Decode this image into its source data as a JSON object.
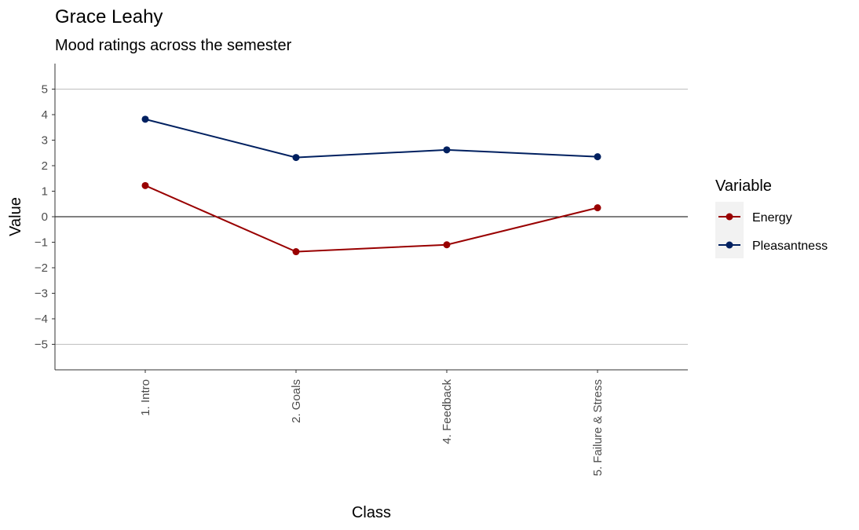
{
  "chart_data": {
    "type": "line",
    "title": "Grace Leahy",
    "subtitle": "Mood ratings across the semester",
    "xlabel": "Class",
    "ylabel": "Value",
    "categories": [
      "1. Intro",
      "2. Goals",
      "4. Feedback",
      "5. Failure & Stress"
    ],
    "ylim": [
      -6,
      6
    ],
    "yticks": [
      5,
      4,
      3,
      2,
      1,
      0,
      -1,
      -2,
      -3,
      -4,
      -5
    ],
    "ytick_labels": [
      "5",
      "4",
      "3",
      "2",
      "1",
      "0",
      "−1",
      "−2",
      "−3",
      "−4",
      "−5"
    ],
    "reference_lines": [
      5,
      0,
      -5
    ],
    "grid": false,
    "legend": {
      "title": "Variable",
      "placement": "right"
    },
    "series": [
      {
        "name": "Energy",
        "color": "#990000",
        "values": [
          1.22,
          -1.37,
          -1.1,
          0.35
        ]
      },
      {
        "name": "Pleasantness",
        "color": "#002060",
        "values": [
          3.82,
          2.32,
          2.62,
          2.35
        ]
      }
    ]
  }
}
